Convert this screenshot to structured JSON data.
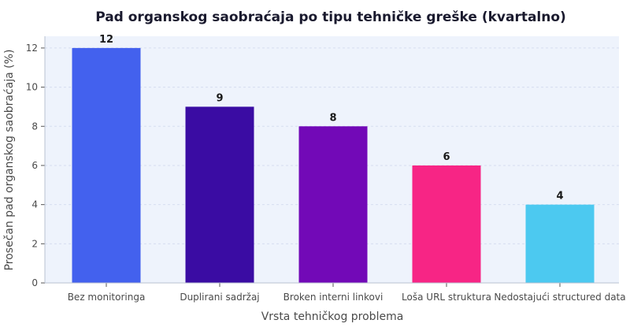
{
  "chart_data": {
    "type": "bar",
    "title": "Pad organskog saobraćaja po tipu tehničke greške (kvartalno)",
    "xlabel": "Vrsta tehničkog problema",
    "ylabel": "Prosečan pad organskog saobraćaja (%)",
    "categories": [
      "Bez monitoringa",
      "Duplirani sadržaj",
      "Broken interni linkovi",
      "Loša URL struktura",
      "Nedostajući structured data"
    ],
    "values": [
      12,
      9,
      8,
      6,
      4
    ],
    "colors": [
      "#4361ee",
      "#3a0ca3",
      "#7209b7",
      "#f72585",
      "#4cc9f0"
    ],
    "ylim": [
      0,
      12.6
    ],
    "yticks": [
      0,
      2,
      4,
      6,
      8,
      10,
      12
    ],
    "grid": true,
    "background": "#eef3fc"
  }
}
